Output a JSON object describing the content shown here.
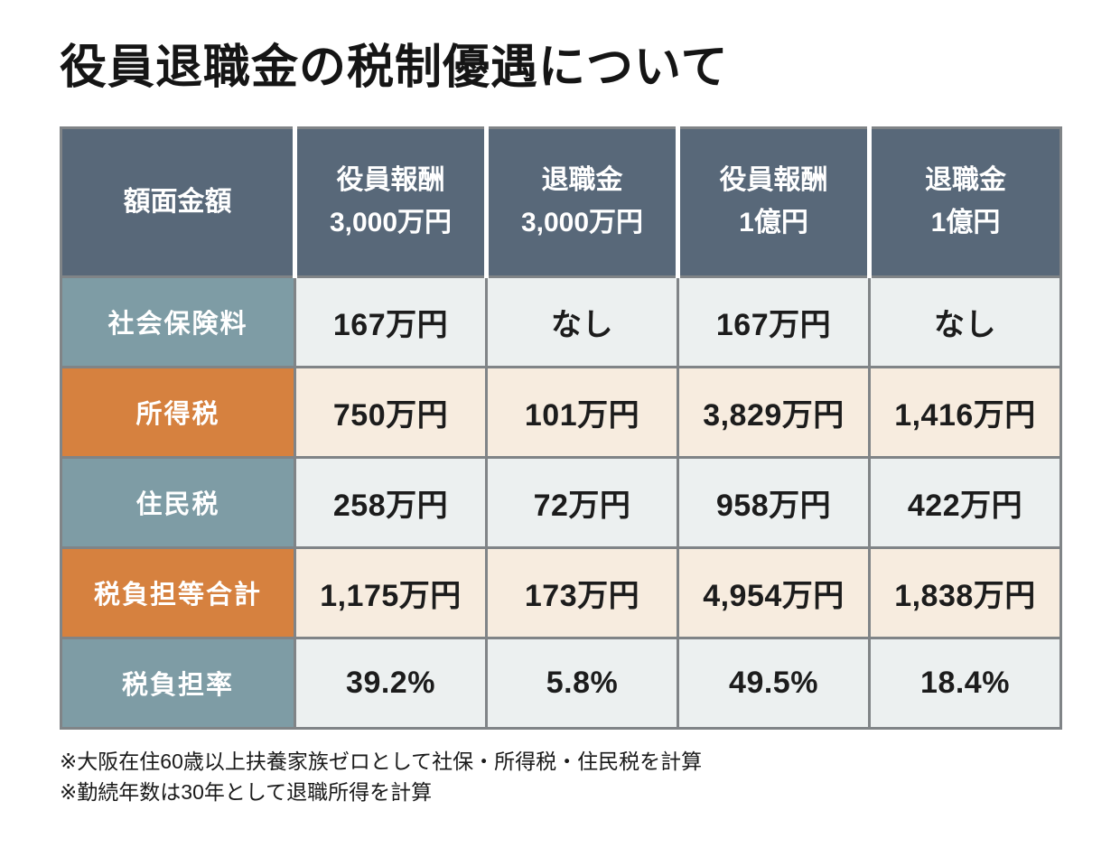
{
  "colors": {
    "header_bg": "#586879",
    "teal": "#7e9ca5",
    "orange": "#d6813f",
    "light_cell": "#ecf0f0",
    "cream_cell": "#f7ecdf",
    "grid": "#808487"
  },
  "chart_data": {
    "type": "table",
    "title": "役員退職金の税制優遇について",
    "columns": [
      "額面金額",
      "役員報酬\n3,000万円",
      "退職金\n3,000万円",
      "役員報酬\n1億円",
      "退職金\n1億円"
    ],
    "rows": [
      {
        "label": "社会保険料",
        "values": [
          "167万円",
          "なし",
          "167万円",
          "なし"
        ]
      },
      {
        "label": "所得税",
        "values": [
          "750万円",
          "101万円",
          "3,829万円",
          "1,416万円"
        ]
      },
      {
        "label": "住民税",
        "values": [
          "258万円",
          "72万円",
          "958万円",
          "422万円"
        ]
      },
      {
        "label": "税負担等合計",
        "values": [
          "1,175万円",
          "173万円",
          "4,954万円",
          "1,838万円"
        ]
      },
      {
        "label": "税負担率",
        "values": [
          "39.2%",
          "5.8%",
          "49.5%",
          "18.4%"
        ]
      }
    ],
    "footnotes": [
      "※大阪在住60歳以上扶養家族ゼロとして社保・所得税・住民税を計算",
      "※勤続年数は30年として退職所得を計算"
    ]
  }
}
